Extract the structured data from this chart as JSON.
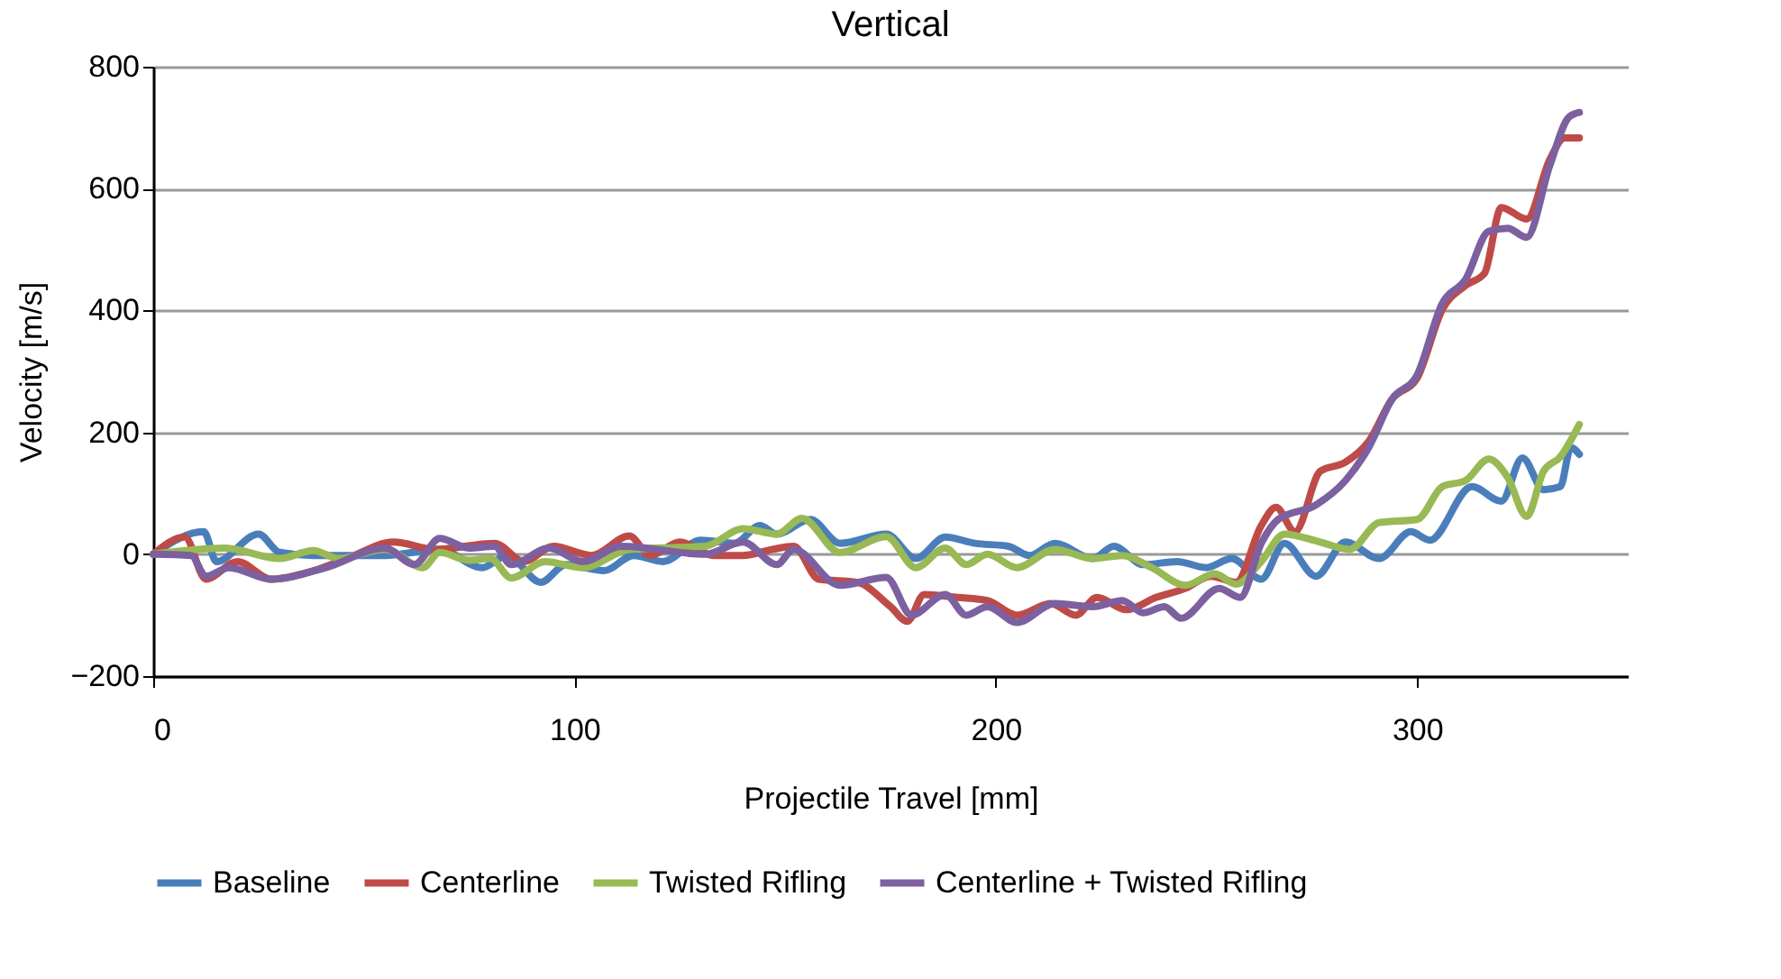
{
  "chart_data": {
    "type": "line",
    "title": "Vertical",
    "xlabel": "Projectile Travel [mm]",
    "ylabel": "Velocity [m/s]",
    "xlim": [
      0,
      350
    ],
    "xticks": [
      0,
      100,
      200,
      300
    ],
    "ylim": [
      -200,
      800
    ],
    "yticks": [
      -200,
      0,
      200,
      400,
      600,
      800
    ],
    "grid": "y",
    "legend": "bottom",
    "series": [
      {
        "name": "Baseline",
        "color": "#4a7ebb",
        "x": [
          0,
          12,
          15,
          25,
          30,
          38,
          55,
          68,
          78,
          84,
          92,
          98,
          107,
          114,
          121,
          130,
          138,
          144,
          148,
          156,
          163,
          174,
          181,
          188,
          195,
          203,
          208,
          214,
          223,
          228,
          235,
          243,
          250,
          256,
          263,
          268.5,
          276,
          283,
          291,
          298.5,
          303,
          313,
          320,
          325,
          330,
          334,
          336.5,
          338.5
        ],
        "values": [
          0,
          37,
          -12,
          33,
          3,
          -2,
          -2,
          8,
          -22,
          -2,
          -46,
          -17,
          -27,
          -2,
          -12,
          23,
          18,
          47,
          33,
          57,
          18,
          33,
          -7,
          28,
          18,
          13,
          -2,
          18,
          -7,
          13,
          -17,
          -12,
          -22,
          -7,
          -41,
          18,
          -36,
          20,
          -7,
          37,
          23,
          111,
          87,
          158,
          106,
          111,
          175,
          164
        ]
      },
      {
        "name": "Centerline",
        "color": "#be4b48",
        "x": [
          0,
          7.5,
          12.5,
          20,
          28,
          38,
          46,
          57,
          67,
          81,
          88,
          95,
          104,
          113,
          118,
          125,
          133,
          140,
          147,
          152,
          158,
          167,
          175,
          179,
          183,
          191,
          198,
          205,
          213,
          219,
          224,
          231,
          238,
          245,
          251,
          257,
          263,
          266.5,
          271,
          277,
          283,
          288.5,
          294,
          300,
          306,
          311.5,
          316,
          320,
          326,
          331.5,
          335,
          338.5
        ],
        "values": [
          0,
          28,
          -41,
          -12,
          -41,
          -27,
          -7,
          20,
          8,
          18,
          -12,
          13,
          -2,
          30,
          -2,
          20,
          -2,
          -2,
          8,
          13,
          -41,
          -46,
          -86,
          -110,
          -66,
          -71,
          -76,
          -100,
          -81,
          -100,
          -71,
          -91,
          -71,
          -56,
          -36,
          -46,
          47,
          77,
          37,
          136,
          151,
          185,
          254,
          289,
          402,
          441,
          461,
          569,
          550,
          648,
          683,
          683
        ]
      },
      {
        "name": "Twisted Rifling",
        "color": "#98b954",
        "x": [
          0,
          17,
          30,
          38,
          44,
          55,
          64,
          68,
          75,
          80,
          85,
          93,
          102,
          113,
          131,
          140,
          148,
          154,
          163,
          174,
          181,
          188,
          193,
          198,
          205,
          214,
          223,
          230,
          237,
          245,
          252,
          257,
          263,
          268.5,
          277,
          284,
          291,
          300,
          306,
          311.5,
          317,
          321.5,
          326,
          330,
          334,
          338.5
        ],
        "values": [
          0,
          10,
          -7,
          6,
          -7,
          8,
          -22,
          3,
          -10,
          -7,
          -39,
          -12,
          -22,
          8,
          13,
          42,
          33,
          59,
          3,
          29,
          -22,
          10,
          -17,
          0,
          -22,
          8,
          -7,
          -2,
          -22,
          -51,
          -32,
          -49,
          -12,
          33,
          20,
          8,
          52,
          57,
          111,
          121,
          156,
          126,
          62,
          136,
          160,
          213
        ]
      },
      {
        "name": "Centerline + Twisted Rifling",
        "color": "#7d60a0",
        "x": [
          0,
          9,
          12.5,
          18,
          28,
          41,
          55,
          62,
          68,
          75,
          81,
          85,
          94,
          102,
          111,
          131,
          140,
          148,
          152,
          163,
          174,
          180,
          188,
          193,
          198,
          205,
          214,
          223,
          230,
          235,
          240,
          244,
          253,
          258,
          263,
          267,
          276,
          283,
          288.5,
          294,
          300,
          306,
          311.5,
          317,
          321.5,
          326,
          331.5,
          336,
          338.5
        ],
        "values": [
          0,
          -2,
          -36,
          -22,
          -41,
          -22,
          10,
          -17,
          26,
          10,
          13,
          -17,
          10,
          -12,
          13,
          0,
          20,
          -17,
          8,
          -51,
          -38,
          -100,
          -66,
          -100,
          -86,
          -112,
          -81,
          -86,
          -76,
          -96,
          -86,
          -105,
          -56,
          -71,
          18,
          57,
          81,
          121,
          175,
          254,
          294,
          412,
          451,
          530,
          535,
          520,
          638,
          717,
          725
        ]
      }
    ]
  }
}
